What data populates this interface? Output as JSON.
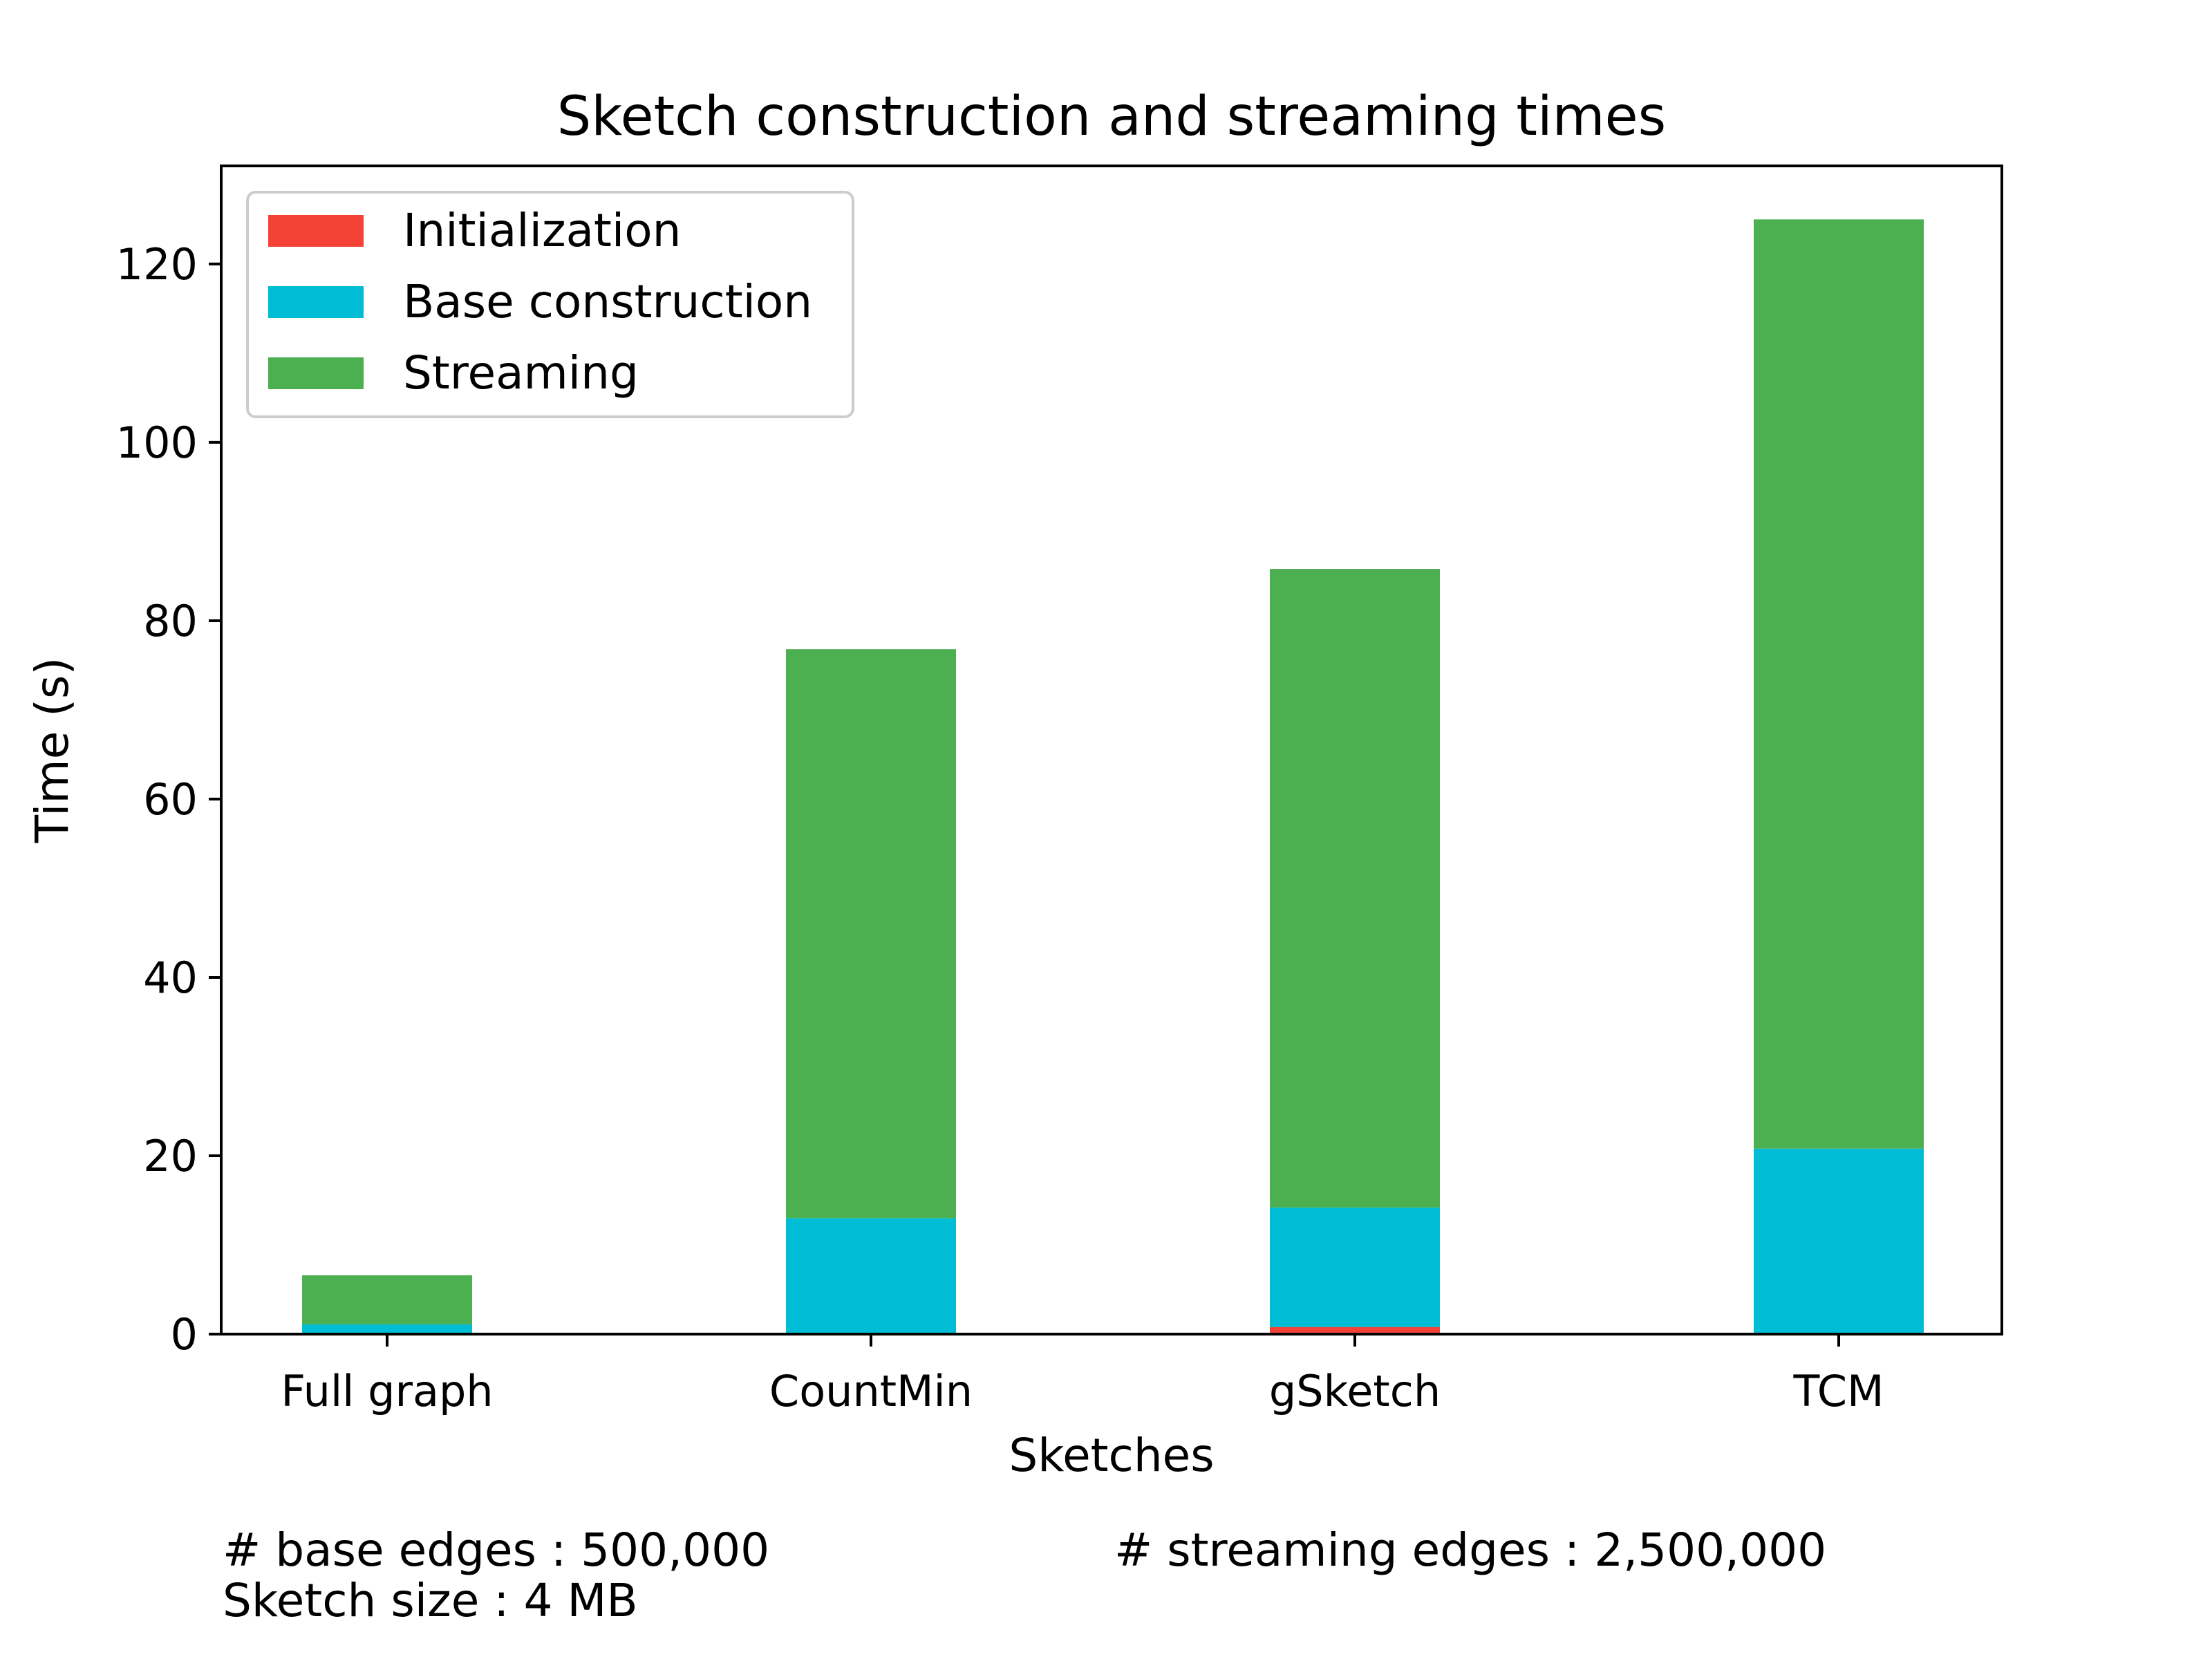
{
  "chart_data": {
    "type": "bar",
    "stacked": true,
    "title": "Sketch construction and streaming times",
    "xlabel": "Sketches",
    "ylabel": "Time (s)",
    "categories": [
      "Full graph",
      "CountMin",
      "gSketch",
      "TCM"
    ],
    "series": [
      {
        "name": "Initialization",
        "color": "#f44336",
        "values": [
          0.0,
          0.0,
          0.8,
          0.0
        ]
      },
      {
        "name": "Base construction",
        "color": "#00bcd4",
        "values": [
          1.1,
          13.0,
          13.4,
          20.8
        ]
      },
      {
        "name": "Streaming",
        "color": "#4caf50",
        "values": [
          5.5,
          63.8,
          71.6,
          104.2
        ]
      }
    ],
    "ylim": [
      0,
      131
    ],
    "yticks": [
      0,
      20,
      40,
      60,
      80,
      100,
      120
    ],
    "legend_position": "top-left",
    "grid": false,
    "footnotes": {
      "base_edges": "# base edges : 500,000",
      "streaming_edges": "# streaming edges : 2,500,000",
      "sketch_size": "Sketch size : 4 MB"
    }
  }
}
